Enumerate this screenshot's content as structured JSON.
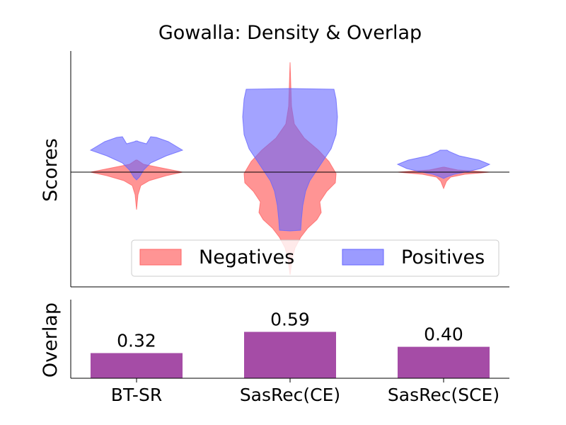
{
  "chart_data": [
    {
      "type": "violin",
      "title": "Gowalla: Density & Overlap",
      "ylabel": "Scores",
      "categories": [
        "BT-SR",
        "SasRec(CE)",
        "SasRec(SCE)"
      ],
      "series": [
        {
          "name": "Negatives",
          "color": "#ff6666",
          "side": "below-zero-heavy"
        },
        {
          "name": "Positives",
          "color": "#6666ff",
          "side": "above-zero-heavy"
        }
      ],
      "reference_line": 0,
      "legend": "lower-right",
      "grid": false
    },
    {
      "type": "bar",
      "ylabel": "Overlap",
      "categories": [
        "BT-SR",
        "SasRec(CE)",
        "SasRec(SCE)"
      ],
      "values": [
        0.32,
        0.59,
        0.4
      ],
      "value_labels": [
        "0.32",
        "0.59",
        "0.40"
      ],
      "color": "#a54ca6",
      "ylim": [
        0,
        1.0
      ],
      "grid": false
    }
  ]
}
